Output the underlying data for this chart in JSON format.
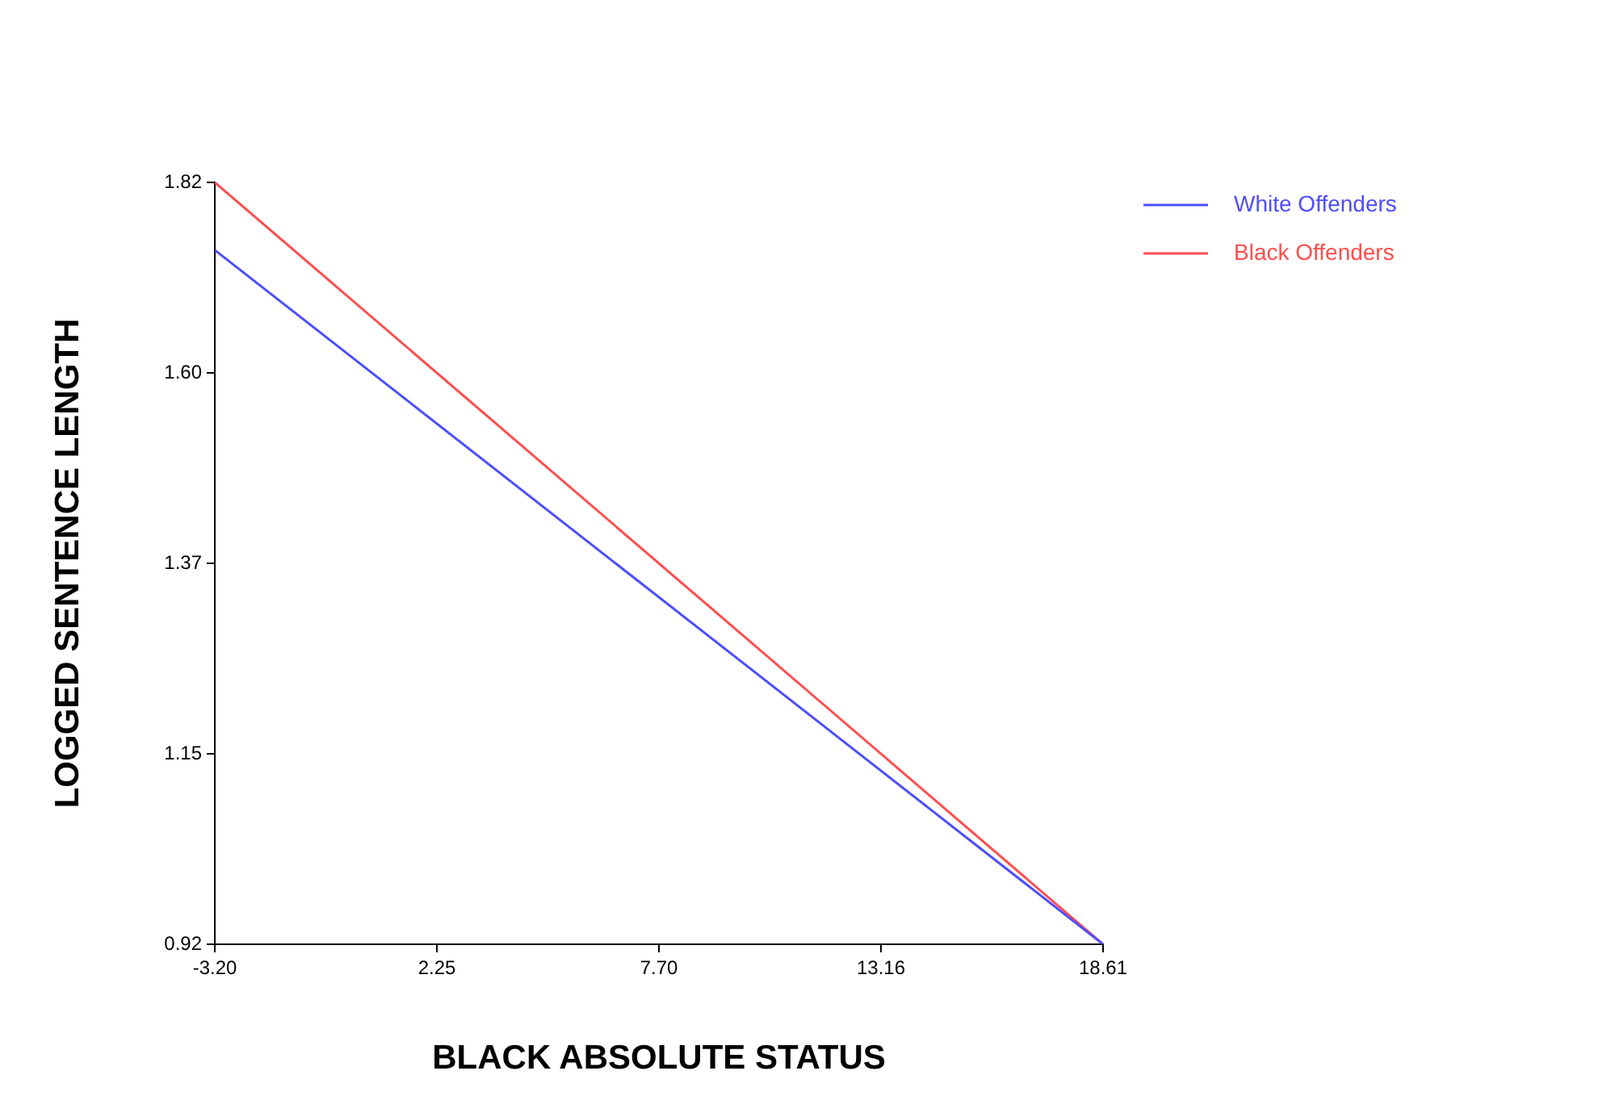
{
  "chart_data": {
    "type": "line",
    "xlabel": "BLACK ABSOLUTE STATUS",
    "ylabel": "LOGGED SENTENCE LENGTH",
    "x": [
      -3.2,
      18.61
    ],
    "series": [
      {
        "name": "White Offenders",
        "color": "#4d4dff",
        "values": [
          1.74,
          0.92
        ]
      },
      {
        "name": "Black Offenders",
        "color": "#ff4d4d",
        "values": [
          1.82,
          0.92
        ]
      }
    ],
    "xlim": [
      -3.2,
      18.61
    ],
    "xticks": [
      {
        "value": -3.2,
        "label": "-3.20"
      },
      {
        "value": 2.2525,
        "label": "2.25"
      },
      {
        "value": 7.705,
        "label": "7.70"
      },
      {
        "value": 13.1575,
        "label": "13.16"
      },
      {
        "value": 18.61,
        "label": "18.61"
      }
    ],
    "ylim": [
      0.92,
      1.82
    ],
    "yticks": [
      {
        "value": 0.92,
        "label": "0.92"
      },
      {
        "value": 1.145,
        "label": "1.15"
      },
      {
        "value": 1.37,
        "label": "1.37"
      },
      {
        "value": 1.595,
        "label": "1.60"
      },
      {
        "value": 1.82,
        "label": "1.82"
      }
    ],
    "grid": false,
    "legend": "top right",
    "marker": "none",
    "line_style": "solid"
  }
}
